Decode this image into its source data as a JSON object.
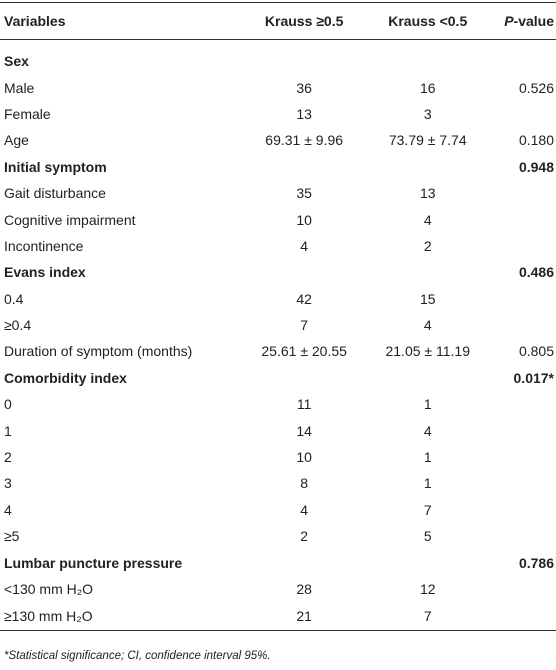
{
  "table": {
    "columns": [
      "Variables",
      "Krauss ≥0.5",
      "Krauss <0.5",
      "P-value"
    ],
    "rows": [
      {
        "heading": true,
        "cells": [
          "Sex",
          null,
          null,
          null
        ]
      },
      {
        "heading": false,
        "cells": [
          "Male",
          "36",
          "16",
          "0.526"
        ]
      },
      {
        "heading": false,
        "cells": [
          "Female",
          "13",
          "3",
          null
        ]
      },
      {
        "heading": false,
        "cells": [
          "Age",
          "69.31 ± 9.96",
          "73.79 ± 7.74",
          "0.180"
        ]
      },
      {
        "heading": true,
        "cells": [
          "Initial symptom",
          null,
          null,
          "0.948"
        ]
      },
      {
        "heading": false,
        "cells": [
          "Gait disturbance",
          "35",
          "13",
          null
        ]
      },
      {
        "heading": false,
        "cells": [
          "Cognitive impairment",
          "10",
          "4",
          null
        ]
      },
      {
        "heading": false,
        "cells": [
          "Incontinence",
          "4",
          "2",
          null
        ]
      },
      {
        "heading": true,
        "cells": [
          "Evans index",
          null,
          null,
          "0.486"
        ]
      },
      {
        "heading": false,
        "cells": [
          "0.4",
          "42",
          "15",
          null
        ]
      },
      {
        "heading": false,
        "cells": [
          "≥0.4",
          "7",
          "4",
          null
        ]
      },
      {
        "heading": false,
        "cells": [
          "Duration of symptom (months)",
          "25.61 ± 20.55",
          "21.05 ± 11.19",
          "0.805"
        ]
      },
      {
        "heading": true,
        "cells": [
          "Comorbidity index",
          null,
          null,
          "0.017*"
        ]
      },
      {
        "heading": false,
        "cells": [
          "0",
          "11",
          "1",
          null
        ]
      },
      {
        "heading": false,
        "cells": [
          "1",
          "14",
          "4",
          null
        ]
      },
      {
        "heading": false,
        "cells": [
          "2",
          "10",
          "1",
          null
        ]
      },
      {
        "heading": false,
        "cells": [
          "3",
          "8",
          "1",
          null
        ]
      },
      {
        "heading": false,
        "cells": [
          "4",
          "4",
          "7",
          null
        ]
      },
      {
        "heading": false,
        "cells": [
          "≥5",
          "2",
          "5",
          null
        ]
      },
      {
        "heading": true,
        "cells": [
          "Lumbar puncture pressure",
          null,
          null,
          "0.786"
        ]
      },
      {
        "heading": false,
        "cells": [
          "<130 mm H₂O",
          "28",
          "12",
          null
        ]
      },
      {
        "heading": false,
        "cells": [
          "≥130 mm H₂O",
          "21",
          "7",
          null
        ]
      }
    ]
  },
  "footnote": "*Statistical significance; CI, confidence interval 95%."
}
